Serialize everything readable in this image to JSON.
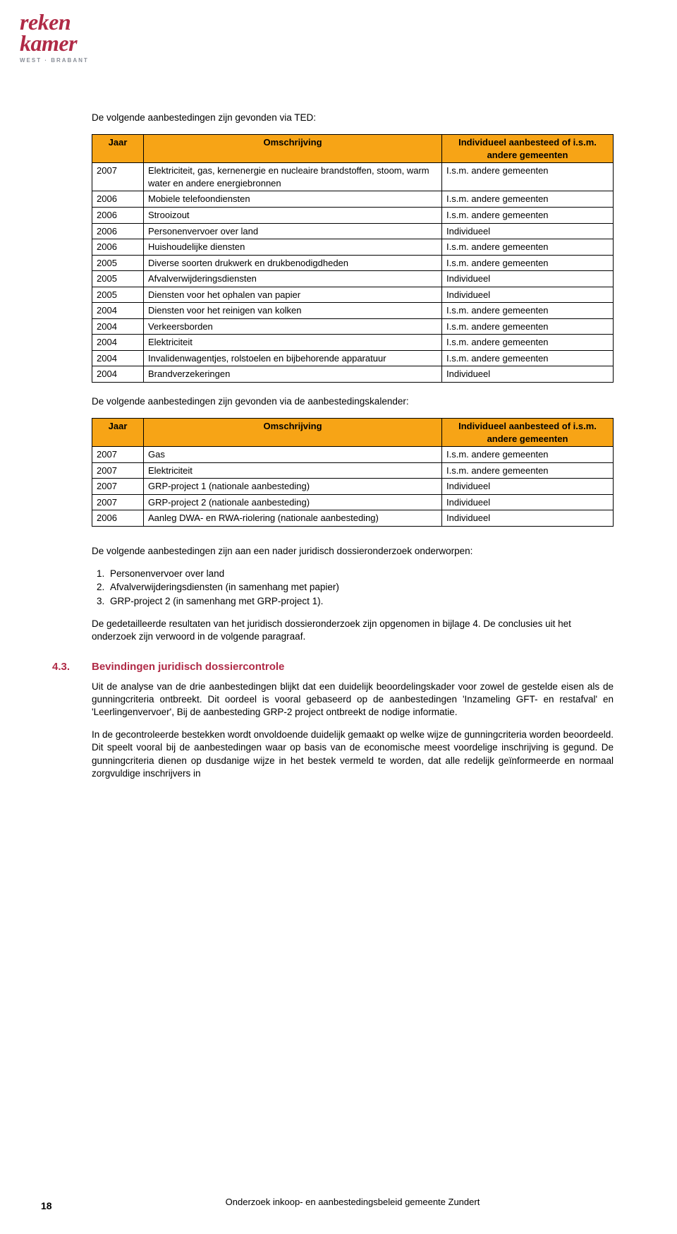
{
  "logo": {
    "line1": "reken",
    "line2": "kamer",
    "sub": "WEST · BRABANT",
    "color": "#b02a46",
    "subcolor": "#8a8f98"
  },
  "intro1": "De volgende aanbestedingen zijn gevonden via TED:",
  "intro2": "De volgende aanbestedingen zijn gevonden via de aanbestedingskalender:",
  "table1": {
    "headers": [
      "Jaar",
      "Omschrijving",
      "Individueel aanbesteed of i.s.m. andere gemeenten"
    ],
    "header_bg": "#f7a416",
    "rows": [
      [
        "2007",
        "Elektriciteit, gas, kernenergie en nucleaire brandstoffen, stoom, warm water en andere energiebronnen",
        "I.s.m. andere gemeenten"
      ],
      [
        "2006",
        "Mobiele telefoondiensten",
        "I.s.m. andere gemeenten"
      ],
      [
        "2006",
        "Strooizout",
        "I.s.m. andere gemeenten"
      ],
      [
        "2006",
        "Personenvervoer over land",
        "Individueel"
      ],
      [
        "2006",
        "Huishoudelijke diensten",
        "I.s.m. andere gemeenten"
      ],
      [
        "2005",
        "Diverse soorten drukwerk en drukbenodigdheden",
        "I.s.m. andere gemeenten"
      ],
      [
        "2005",
        "Afvalverwijderingsdiensten",
        "Individueel"
      ],
      [
        "2005",
        "Diensten voor het ophalen van papier",
        "Individueel"
      ],
      [
        "2004",
        "Diensten voor het reinigen van kolken",
        "I.s.m. andere gemeenten"
      ],
      [
        "2004",
        "Verkeersborden",
        "I.s.m. andere gemeenten"
      ],
      [
        "2004",
        "Elektriciteit",
        "I.s.m. andere gemeenten"
      ],
      [
        "2004",
        "Invalidenwagentjes, rolstoelen en bijbehorende apparatuur",
        "I.s.m. andere gemeenten"
      ],
      [
        "2004",
        "Brandverzekeringen",
        "Individueel"
      ]
    ]
  },
  "table2": {
    "headers": [
      "Jaar",
      "Omschrijving",
      "Individueel aanbesteed of i.s.m. andere gemeenten"
    ],
    "header_bg": "#f7a416",
    "rows": [
      [
        "2007",
        "Gas",
        "I.s.m. andere gemeenten"
      ],
      [
        "2007",
        "Elektriciteit",
        "I.s.m. andere gemeenten"
      ],
      [
        "2007",
        "GRP-project 1 (nationale aanbesteding)",
        "Individueel"
      ],
      [
        "2007",
        "GRP-project 2 (nationale aanbesteding)",
        "Individueel"
      ],
      [
        "2006",
        "Aanleg DWA- en RWA-riolering (nationale aanbesteding)",
        "Individueel"
      ]
    ]
  },
  "followup1": "De volgende aanbestedingen zijn aan een nader juridisch dossieronderzoek onderworpen:",
  "list": {
    "items": [
      "Personenvervoer over land",
      "Afvalverwijderingsdiensten (in samenhang met papier)",
      "GRP-project 2 (in samenhang met GRP-project 1)."
    ]
  },
  "followup2": "De gedetailleerde resultaten van het juridisch dossieronderzoek zijn opgenomen in bijlage 4. De conclusies uit het onderzoek zijn verwoord in de volgende paragraaf.",
  "section": {
    "num": "4.3.",
    "title": "Bevindingen juridisch dossiercontrole",
    "p1": "Uit de analyse van de drie aanbestedingen blijkt dat een duidelijk beoordelingskader voor zowel de gestelde eisen als de gunningcriteria ontbreekt. Dit oordeel is vooral gebaseerd op de aanbestedingen 'Inzameling GFT- en restafval' en 'Leerlingenvervoer', Bij de aanbesteding GRP-2 project ontbreekt de nodige informatie.",
    "p2": "In de gecontroleerde bestekken wordt onvoldoende duidelijk gemaakt op welke wijze de gunningcriteria worden beoordeeld. Dit speelt vooral bij de aanbestedingen waar op basis van de economische meest voordelige inschrijving is gegund. De gunningcriteria dienen op dusdanige wijze in het bestek vermeld te worden, dat alle redelijk geïnformeerde en normaal zorgvuldige inschrijvers in"
  },
  "footer": "Onderzoek inkoop- en aanbestedingsbeleid gemeente Zundert",
  "page_number": "18"
}
